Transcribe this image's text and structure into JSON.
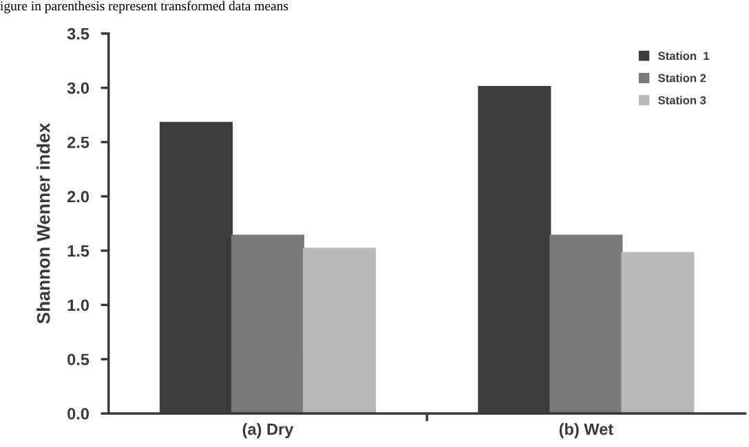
{
  "chart_data": {
    "type": "bar",
    "annotations": [
      "igure in parenthesis represent transformed data means"
    ],
    "ylabel": "Shannon Wenner index",
    "categories": [
      "(a) Dry",
      "(b) Wet"
    ],
    "series": [
      {
        "name": "Station  1",
        "color": "#3c3c3c",
        "values": [
          2.68,
          3.01
        ]
      },
      {
        "name": "Station 2",
        "color": "#7a7a7a",
        "values": [
          1.64,
          1.64
        ]
      },
      {
        "name": "Station 3",
        "color": "#b8b8b8",
        "values": [
          1.52,
          1.48
        ]
      }
    ],
    "ylim": [
      0,
      3.5
    ],
    "yticks": [
      {
        "value": 0,
        "label": "0.0"
      },
      {
        "value": 0.5,
        "label": "0.5"
      },
      {
        "value": 1,
        "label": "1.0"
      },
      {
        "value": 1.5,
        "label": "1.5"
      },
      {
        "value": 2,
        "label": "2.0"
      },
      {
        "value": 2.5,
        "label": "2.5"
      },
      {
        "value": 3,
        "label": "3.0"
      },
      {
        "value": 3.5,
        "label": "3.5"
      }
    ],
    "grid": false,
    "legend": "top right"
  }
}
